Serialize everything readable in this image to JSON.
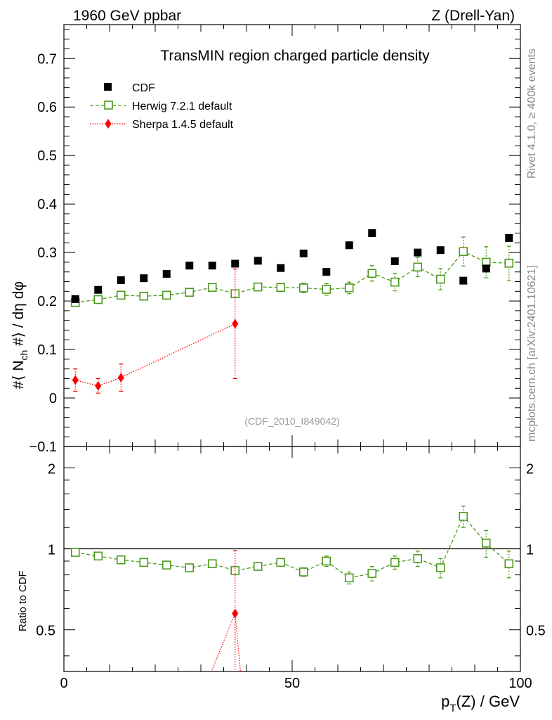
{
  "header": {
    "left": "1960 GeV ppbar",
    "right": "Z (Drell-Yan)"
  },
  "side_text": {
    "top": "Rivet 4.1.0, ≥ 400k events",
    "bottom": "mcplots.cern.ch [arXiv:2401.10621]"
  },
  "chart_data": [
    {
      "type": "scatter",
      "panel": "main",
      "title": "TransMIN region charged particle density",
      "watermark": "(CDF_2010_I849042)",
      "ylabel": "#⟨ N_ch #⟩ / dη dφ",
      "ylabel_parts": {
        "pre": "#⟨ N",
        "sub": "ch",
        "post": " #⟩ / dη dφ"
      },
      "xlim": [
        0,
        100
      ],
      "ylim": [
        -0.1,
        0.77
      ],
      "yticks": [
        -0.1,
        0,
        0.1,
        0.2,
        0.3,
        0.4,
        0.5,
        0.6,
        0.7
      ],
      "ytick_labels": [
        "−0.1",
        "0",
        "0.1",
        "0.2",
        "0.3",
        "0.4",
        "0.5",
        "0.6",
        "0.7"
      ],
      "legend_position": "top-left",
      "series": [
        {
          "name": "CDF",
          "style": "black-squares",
          "color": "#000000",
          "x": [
            2.5,
            7.5,
            12.5,
            17.5,
            22.5,
            27.5,
            32.5,
            37.5,
            42.5,
            47.5,
            52.5,
            57.5,
            62.5,
            67.5,
            72.5,
            77.5,
            82.5,
            87.5,
            92.5,
            97.5
          ],
          "y": [
            0.204,
            0.223,
            0.243,
            0.247,
            0.256,
            0.273,
            0.273,
            0.277,
            0.283,
            0.268,
            0.298,
            0.26,
            0.315,
            0.34,
            0.282,
            0.3,
            0.305,
            0.242,
            0.267,
            0.33
          ]
        },
        {
          "name": "Herwig 7.2.1 default",
          "style": "green-open-squares-dashed",
          "color": "#4a9a1a",
          "x": [
            2.5,
            7.5,
            12.5,
            17.5,
            22.5,
            27.5,
            32.5,
            37.5,
            42.5,
            47.5,
            52.5,
            57.5,
            62.5,
            67.5,
            72.5,
            77.5,
            82.5,
            87.5,
            92.5,
            97.5
          ],
          "y": [
            0.197,
            0.203,
            0.212,
            0.21,
            0.212,
            0.218,
            0.228,
            0.215,
            0.229,
            0.228,
            0.227,
            0.224,
            0.227,
            0.257,
            0.239,
            0.27,
            0.245,
            0.302,
            0.28,
            0.278
          ],
          "yerr": [
            0.004,
            0.004,
            0.005,
            0.005,
            0.005,
            0.005,
            0.006,
            0.007,
            0.007,
            0.008,
            0.01,
            0.012,
            0.012,
            0.016,
            0.018,
            0.02,
            0.022,
            0.03,
            0.032,
            0.035
          ]
        },
        {
          "name": "Sherpa 1.4.5 default",
          "style": "red-diamonds-dotted",
          "color": "#ff0000",
          "x": [
            2.5,
            7.5,
            12.5,
            37.5
          ],
          "y": [
            0.037,
            0.025,
            0.042,
            0.153
          ],
          "yerr": [
            0.023,
            0.015,
            0.028,
            0.113
          ]
        }
      ]
    },
    {
      "type": "scatter",
      "panel": "ratio",
      "ylabel": "Ratio to CDF",
      "xlabel": "p_T(Z) / GeV",
      "xlabel_parts": {
        "pre": "p",
        "sub": "T",
        "post": "(Z) / GeV"
      },
      "xlim": [
        0,
        100
      ],
      "ylim": [
        0.35,
        2.4
      ],
      "log_y": true,
      "yticks": [
        0.5,
        1,
        2
      ],
      "ytick_labels": [
        "0.5",
        "1",
        "2"
      ],
      "xticks": [
        0,
        50,
        100
      ],
      "xtick_labels": [
        "0",
        "50",
        "100"
      ],
      "reference_line": 1,
      "series": [
        {
          "name": "Herwig 7.2.1 default",
          "color": "#4a9a1a",
          "x": [
            2.5,
            7.5,
            12.5,
            17.5,
            22.5,
            27.5,
            32.5,
            37.5,
            42.5,
            47.5,
            52.5,
            57.5,
            62.5,
            67.5,
            72.5,
            77.5,
            82.5,
            87.5,
            92.5,
            97.5
          ],
          "y": [
            0.97,
            0.94,
            0.91,
            0.89,
            0.87,
            0.85,
            0.88,
            0.83,
            0.86,
            0.89,
            0.82,
            0.9,
            0.78,
            0.81,
            0.89,
            0.92,
            0.85,
            1.32,
            1.05,
            0.88
          ],
          "yerr": [
            0.015,
            0.015,
            0.015,
            0.015,
            0.015,
            0.017,
            0.02,
            0.02,
            0.02,
            0.025,
            0.03,
            0.04,
            0.04,
            0.05,
            0.05,
            0.06,
            0.07,
            0.12,
            0.12,
            0.1
          ]
        },
        {
          "name": "Sherpa 1.4.5 default",
          "color": "#ff0000",
          "x": [
            37.5
          ],
          "y": [
            0.575
          ],
          "yerr": [
            0.41
          ],
          "trend_from": [
            30,
            0.28
          ],
          "trend_to": [
            40,
            0.2
          ]
        }
      ]
    }
  ]
}
